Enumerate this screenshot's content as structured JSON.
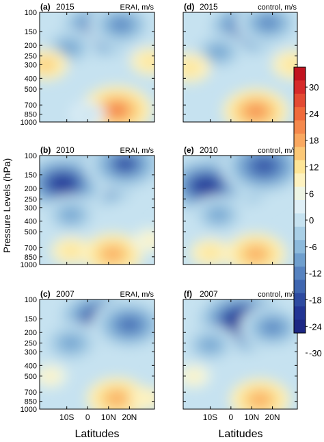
{
  "figure": {
    "ylabel": "Pressure Levels (hPa)",
    "xlabel": "Latitudes"
  },
  "colorbar": {
    "ticks": [
      "30",
      "24",
      "18",
      "12",
      "6",
      "0",
      "-6",
      "-12",
      "-18",
      "-24",
      "-30"
    ],
    "colors": [
      "#c1121f",
      "#d62a2a",
      "#e34a33",
      "#f06a3b",
      "#f5894d",
      "#f9a860",
      "#fbc877",
      "#fde597",
      "#fdf2c0",
      "#eef5e4",
      "#dfeff6",
      "#c6e2f0",
      "#a9cfe6",
      "#8cbadc",
      "#6f9fce",
      "#5783c0",
      "#3f66b0",
      "#2d4aa0",
      "#223594",
      "#1c2784"
    ]
  },
  "chart_data": [
    {
      "type": "heatmap",
      "panel": "a",
      "label": "(a)",
      "year": "2015",
      "source": "ERAI, m/s",
      "x_ticks": [
        "10S",
        "0",
        "10N",
        "20N"
      ],
      "y_ticks": [
        "100",
        "150",
        "200",
        "250",
        "300",
        "400",
        "500",
        "700",
        "850",
        "1000"
      ],
      "features": [
        {
          "lat": 6,
          "p": 145,
          "u": -27
        },
        {
          "lat": -9,
          "p": 210,
          "u": -14
        },
        {
          "lat": 16,
          "p": 130,
          "u": -18
        },
        {
          "lat": 14,
          "p": 780,
          "u": 20
        },
        {
          "lat": -20,
          "p": 300,
          "u": 10
        },
        {
          "lat": 30,
          "p": 280,
          "u": 8
        },
        {
          "lat": 0,
          "p": 850,
          "u": -6
        }
      ]
    },
    {
      "type": "heatmap",
      "panel": "b",
      "label": "(b)",
      "year": "2010",
      "source": "ERAI, m/s",
      "x_ticks": [
        "10S",
        "0",
        "10N",
        "20N"
      ],
      "y_ticks": [
        "100",
        "150",
        "200",
        "250",
        "300",
        "400",
        "500",
        "700",
        "850",
        "1000"
      ],
      "features": [
        {
          "lat": 4,
          "p": 150,
          "u": -33
        },
        {
          "lat": -12,
          "p": 180,
          "u": -28
        },
        {
          "lat": 18,
          "p": 120,
          "u": -24
        },
        {
          "lat": -8,
          "p": 350,
          "u": -14
        },
        {
          "lat": 12,
          "p": 800,
          "u": 16
        },
        {
          "lat": -8,
          "p": 750,
          "u": 8
        },
        {
          "lat": 30,
          "p": 600,
          "u": 6
        }
      ]
    },
    {
      "type": "heatmap",
      "panel": "c",
      "label": "(c)",
      "year": "2007",
      "source": "ERAI, m/s",
      "x_ticks": [
        "10S",
        "0",
        "10N",
        "20N"
      ],
      "y_ticks": [
        "100",
        "150",
        "200",
        "250",
        "300",
        "400",
        "500",
        "700",
        "850",
        "1000"
      ],
      "features": [
        {
          "lat": 6,
          "p": 150,
          "u": -28
        },
        {
          "lat": 20,
          "p": 170,
          "u": -22
        },
        {
          "lat": -8,
          "p": 250,
          "u": -16
        },
        {
          "lat": 14,
          "p": 800,
          "u": 16
        },
        {
          "lat": -18,
          "p": 500,
          "u": 6
        },
        {
          "lat": 28,
          "p": 800,
          "u": 5
        }
      ]
    },
    {
      "type": "heatmap",
      "panel": "d",
      "label": "(d)",
      "year": "2015",
      "source": "control, m/s",
      "x_ticks": [
        "10S",
        "0",
        "10N",
        "20N"
      ],
      "y_ticks": [
        "100",
        "150",
        "200",
        "250",
        "300",
        "400",
        "500",
        "700",
        "850",
        "1000"
      ],
      "features": [
        {
          "lat": 8,
          "p": 140,
          "u": -26
        },
        {
          "lat": -6,
          "p": 230,
          "u": -14
        },
        {
          "lat": 18,
          "p": 125,
          "u": -18
        },
        {
          "lat": 12,
          "p": 800,
          "u": 18
        },
        {
          "lat": -20,
          "p": 320,
          "u": 9
        },
        {
          "lat": 30,
          "p": 300,
          "u": 9
        }
      ]
    },
    {
      "type": "heatmap",
      "panel": "e",
      "label": "(e)",
      "year": "2010",
      "source": "control, m/s",
      "x_ticks": [
        "10S",
        "0",
        "10N",
        "20N"
      ],
      "y_ticks": [
        "100",
        "150",
        "200",
        "250",
        "300",
        "400",
        "500",
        "700",
        "850",
        "1000"
      ],
      "features": [
        {
          "lat": 2,
          "p": 150,
          "u": -33
        },
        {
          "lat": -12,
          "p": 190,
          "u": -28
        },
        {
          "lat": 16,
          "p": 125,
          "u": -26
        },
        {
          "lat": -6,
          "p": 350,
          "u": -14
        },
        {
          "lat": 12,
          "p": 800,
          "u": 16
        },
        {
          "lat": -10,
          "p": 780,
          "u": 8
        }
      ]
    },
    {
      "type": "heatmap",
      "panel": "f",
      "label": "(f)",
      "year": "2007",
      "source": "control, m/s",
      "x_ticks": [
        "10S",
        "0",
        "10N",
        "20N"
      ],
      "y_ticks": [
        "100",
        "150",
        "200",
        "250",
        "300",
        "400",
        "500",
        "700",
        "850",
        "1000"
      ],
      "features": [
        {
          "lat": 6,
          "p": 160,
          "u": -32
        },
        {
          "lat": 20,
          "p": 180,
          "u": -18
        },
        {
          "lat": -10,
          "p": 260,
          "u": -14
        },
        {
          "lat": 14,
          "p": 820,
          "u": 16
        },
        {
          "lat": -18,
          "p": 500,
          "u": 6
        }
      ]
    }
  ]
}
